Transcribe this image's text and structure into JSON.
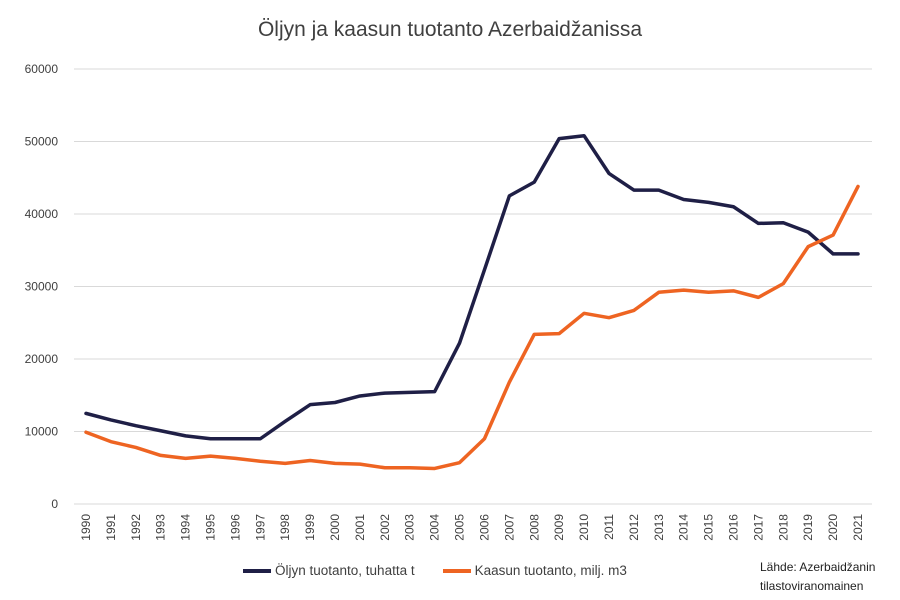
{
  "chart_data": {
    "type": "line",
    "title": "Öljyn ja kaasun tuotanto Azerbaidžanissa",
    "xlabel": "",
    "ylabel": "",
    "ylim": [
      0,
      60000
    ],
    "yticks": [
      "0",
      "10000",
      "20000",
      "30000",
      "40000",
      "50000",
      "60000"
    ],
    "grid": true,
    "legend_position": "bottom",
    "x": [
      "1990",
      "1991",
      "1992",
      "1993",
      "1994",
      "1995",
      "1996",
      "1997",
      "1998",
      "1999",
      "2000",
      "2001",
      "2002",
      "2003",
      "2004",
      "2005",
      "2006",
      "2007",
      "2008",
      "2009",
      "2010",
      "2011",
      "2012",
      "2013",
      "2014",
      "2015",
      "2016",
      "2017",
      "2018",
      "2019",
      "2020",
      "2021"
    ],
    "series": [
      {
        "name": "Öljyn tuotanto, tuhatta t",
        "color": "#1f1f46",
        "values": [
          12500,
          11600,
          10800,
          10100,
          9400,
          9000,
          9000,
          9000,
          11400,
          13700,
          14000,
          14900,
          15300,
          15400,
          15500,
          22200,
          32300,
          42500,
          44400,
          50400,
          50800,
          45600,
          43300,
          43300,
          42000,
          41600,
          41000,
          38700,
          38800,
          37500,
          34500,
          34500
        ]
      },
      {
        "name": "Kaasun tuotanto, milj. m3",
        "color": "#ee6422",
        "values": [
          9900,
          8600,
          7800,
          6700,
          6300,
          6600,
          6300,
          5900,
          5600,
          6000,
          5600,
          5500,
          5000,
          5000,
          4900,
          5700,
          9000,
          16800,
          23400,
          23500,
          26300,
          25700,
          26700,
          29200,
          29500,
          29200,
          29400,
          28500,
          30400,
          35500,
          37100,
          43800
        ]
      }
    ],
    "source_line1": "Lähde: Azerbaidžanin",
    "source_line2": "tilastoviranomainen"
  }
}
